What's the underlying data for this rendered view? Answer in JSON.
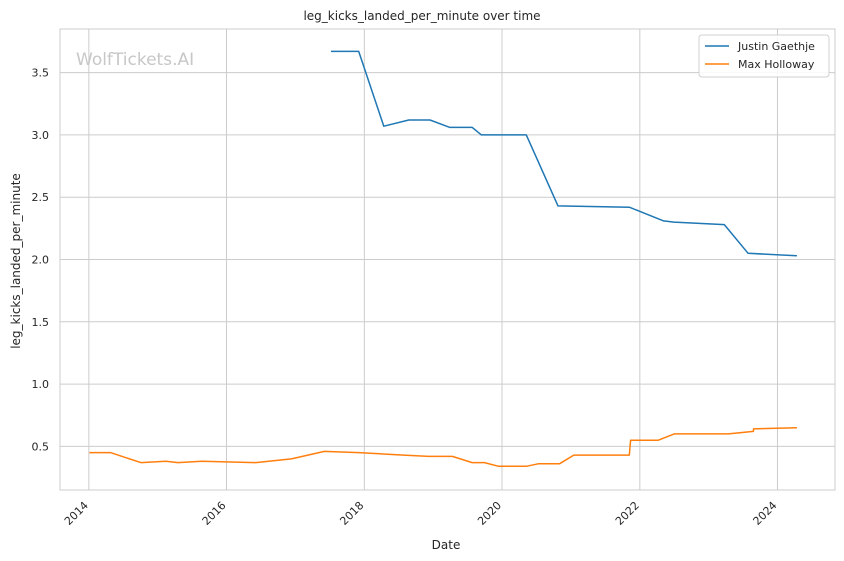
{
  "watermark": "WolfTickets.AI",
  "chart_data": {
    "type": "line",
    "title": "leg_kicks_landed_per_minute over time",
    "xlabel": "Date",
    "ylabel": "leg_kicks_landed_per_minute",
    "xlim": [
      "2013-08-01",
      "2024-11-01"
    ],
    "ylim": [
      0.15,
      3.85
    ],
    "xticks": [
      {
        "label": "2014",
        "date": "2014-01-01"
      },
      {
        "label": "2016",
        "date": "2016-01-01"
      },
      {
        "label": "2018",
        "date": "2018-01-01"
      },
      {
        "label": "2020",
        "date": "2020-01-01"
      },
      {
        "label": "2022",
        "date": "2022-01-01"
      },
      {
        "label": "2024",
        "date": "2024-01-01"
      }
    ],
    "yticks": [
      0.5,
      1.0,
      1.5,
      2.0,
      2.5,
      3.0,
      3.5
    ],
    "ytick_labels": [
      "0.5",
      "1.0",
      "1.5",
      "2.0",
      "2.5",
      "3.0",
      "3.5"
    ],
    "grid": true,
    "legend_position": "top-right",
    "series": [
      {
        "name": "Justin Gaethje",
        "color": "#1f77b4",
        "points": [
          {
            "x": "2017-07-08",
            "y": 3.67
          },
          {
            "x": "2017-12-02",
            "y": 3.67
          },
          {
            "x": "2018-04-14",
            "y": 3.07
          },
          {
            "x": "2018-08-25",
            "y": 3.12
          },
          {
            "x": "2018-12-15",
            "y": 3.12
          },
          {
            "x": "2019-03-30",
            "y": 3.06
          },
          {
            "x": "2019-07-27",
            "y": 3.06
          },
          {
            "x": "2019-09-14",
            "y": 3.0
          },
          {
            "x": "2020-05-09",
            "y": 3.0
          },
          {
            "x": "2020-10-24",
            "y": 2.43
          },
          {
            "x": "2021-11-06",
            "y": 2.42
          },
          {
            "x": "2022-05-07",
            "y": 2.31
          },
          {
            "x": "2022-07-01",
            "y": 2.3
          },
          {
            "x": "2023-03-25",
            "y": 2.28
          },
          {
            "x": "2023-07-29",
            "y": 2.05
          },
          {
            "x": "2024-04-13",
            "y": 2.03
          }
        ]
      },
      {
        "name": "Max Holloway",
        "color": "#ff7f0e",
        "points": [
          {
            "x": "2014-01-04",
            "y": 0.45
          },
          {
            "x": "2014-04-26",
            "y": 0.45
          },
          {
            "x": "2014-10-04",
            "y": 0.37
          },
          {
            "x": "2015-02-14",
            "y": 0.38
          },
          {
            "x": "2015-04-18",
            "y": 0.37
          },
          {
            "x": "2015-08-23",
            "y": 0.38
          },
          {
            "x": "2016-06-04",
            "y": 0.37
          },
          {
            "x": "2016-12-10",
            "y": 0.4
          },
          {
            "x": "2017-06-03",
            "y": 0.46
          },
          {
            "x": "2017-12-02",
            "y": 0.45
          },
          {
            "x": "2018-07-28",
            "y": 0.43
          },
          {
            "x": "2018-12-08",
            "y": 0.42
          },
          {
            "x": "2019-04-13",
            "y": 0.42
          },
          {
            "x": "2019-07-27",
            "y": 0.37
          },
          {
            "x": "2019-09-30",
            "y": 0.37
          },
          {
            "x": "2019-12-14",
            "y": 0.34
          },
          {
            "x": "2020-05-09",
            "y": 0.34
          },
          {
            "x": "2020-07-11",
            "y": 0.36
          },
          {
            "x": "2020-11-01",
            "y": 0.36
          },
          {
            "x": "2021-01-16",
            "y": 0.43
          },
          {
            "x": "2021-11-06",
            "y": 0.43
          },
          {
            "x": "2021-11-13",
            "y": 0.55
          },
          {
            "x": "2022-04-09",
            "y": 0.55
          },
          {
            "x": "2022-07-02",
            "y": 0.6
          },
          {
            "x": "2023-04-15",
            "y": 0.6
          },
          {
            "x": "2023-08-26",
            "y": 0.62
          },
          {
            "x": "2023-08-27",
            "y": 0.64
          },
          {
            "x": "2024-04-13",
            "y": 0.65
          }
        ]
      }
    ]
  }
}
